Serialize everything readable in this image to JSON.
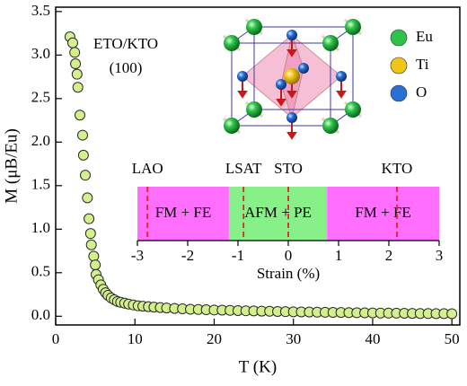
{
  "chart_data": [
    {
      "type": "scatter",
      "xlabel": "T (K)",
      "ylabel": "M (μB/Eu)",
      "annotations": [
        "ETO/KTO",
        "(100)"
      ],
      "xlim": [
        0,
        51
      ],
      "ylim": [
        -0.1,
        3.55
      ],
      "xticks": [
        0,
        10,
        20,
        30,
        40,
        50
      ],
      "yticks": [
        {
          "value": 0,
          "label": "0.0"
        },
        0.5,
        {
          "value": 1,
          "label": "1.0"
        },
        1.5,
        {
          "value": 2,
          "label": "2.0"
        },
        2.5,
        {
          "value": 3,
          "label": "3.0"
        },
        3.5
      ],
      "series": [
        {
          "color": "#d3f08c",
          "x": [
            1.8,
            2.15,
            2.4,
            2.5,
            2.7,
            2.8,
            3.06,
            3.4,
            3.5,
            3.74,
            4.0,
            4.2,
            4.4,
            4.5,
            4.8,
            5.0,
            5.1,
            5.4,
            5.7,
            6.0,
            6.3,
            6.6,
            7.0,
            7.4,
            7.8,
            8.2,
            8.7,
            9.2,
            9.8,
            10.4,
            11.0,
            11.7,
            12.4,
            13.2,
            14.0,
            15,
            16,
            17,
            18,
            19,
            20,
            21,
            22,
            23,
            24,
            25,
            26,
            27,
            28,
            29,
            30,
            31,
            32,
            33,
            34,
            35,
            36,
            37,
            38,
            39,
            40,
            41,
            42,
            43,
            44,
            45,
            46,
            47,
            48,
            49,
            50
          ],
          "values": [
            3.21,
            3.14,
            3.03,
            2.9,
            2.78,
            2.63,
            2.31,
            2.08,
            1.85,
            1.62,
            1.36,
            1.12,
            0.95,
            0.82,
            0.69,
            0.59,
            0.48,
            0.42,
            0.36,
            0.31,
            0.27,
            0.24,
            0.21,
            0.19,
            0.17,
            0.16,
            0.15,
            0.14,
            0.13,
            0.12,
            0.115,
            0.11,
            0.105,
            0.1,
            0.095,
            0.09,
            0.085,
            0.08,
            0.078,
            0.075,
            0.072,
            0.07,
            0.068,
            0.065,
            0.063,
            0.061,
            0.059,
            0.057,
            0.055,
            0.053,
            0.051,
            0.05,
            0.048,
            0.047,
            0.045,
            0.044,
            0.043,
            0.042,
            0.04,
            0.039,
            0.038,
            0.037,
            0.036,
            0.035,
            0.034,
            0.033,
            0.032,
            0.031,
            0.03,
            0.03,
            0.029
          ]
        }
      ]
    },
    {
      "type": "range",
      "xlabel": "Strain (%)",
      "xlim": [
        -3,
        3
      ],
      "xticks": [
        -3,
        -2,
        -1,
        0,
        1,
        2,
        3
      ],
      "regions": [
        {
          "label": "FM + FE",
          "start": -3,
          "end": -1.18,
          "color": "#ff6eff"
        },
        {
          "label": "AFM + PE",
          "start": -1.18,
          "end": 0.77,
          "color": "#88f088"
        },
        {
          "label": "FM + FE",
          "start": 0.77,
          "end": 3,
          "color": "#ff6eff"
        }
      ],
      "markers": [
        {
          "label": "LAO",
          "value": -2.8
        },
        {
          "label": "LSAT",
          "value": -0.89
        },
        {
          "label": "STO",
          "value": 0
        },
        {
          "label": "KTO",
          "value": 2.16
        }
      ],
      "marker_color": "#e8202a"
    }
  ],
  "structure_inset": {
    "legend": [
      {
        "label": "Eu",
        "color": "#2fc24a"
      },
      {
        "label": "Ti",
        "color": "#f0c419"
      },
      {
        "label": "O",
        "color": "#2a6fd6"
      }
    ]
  }
}
